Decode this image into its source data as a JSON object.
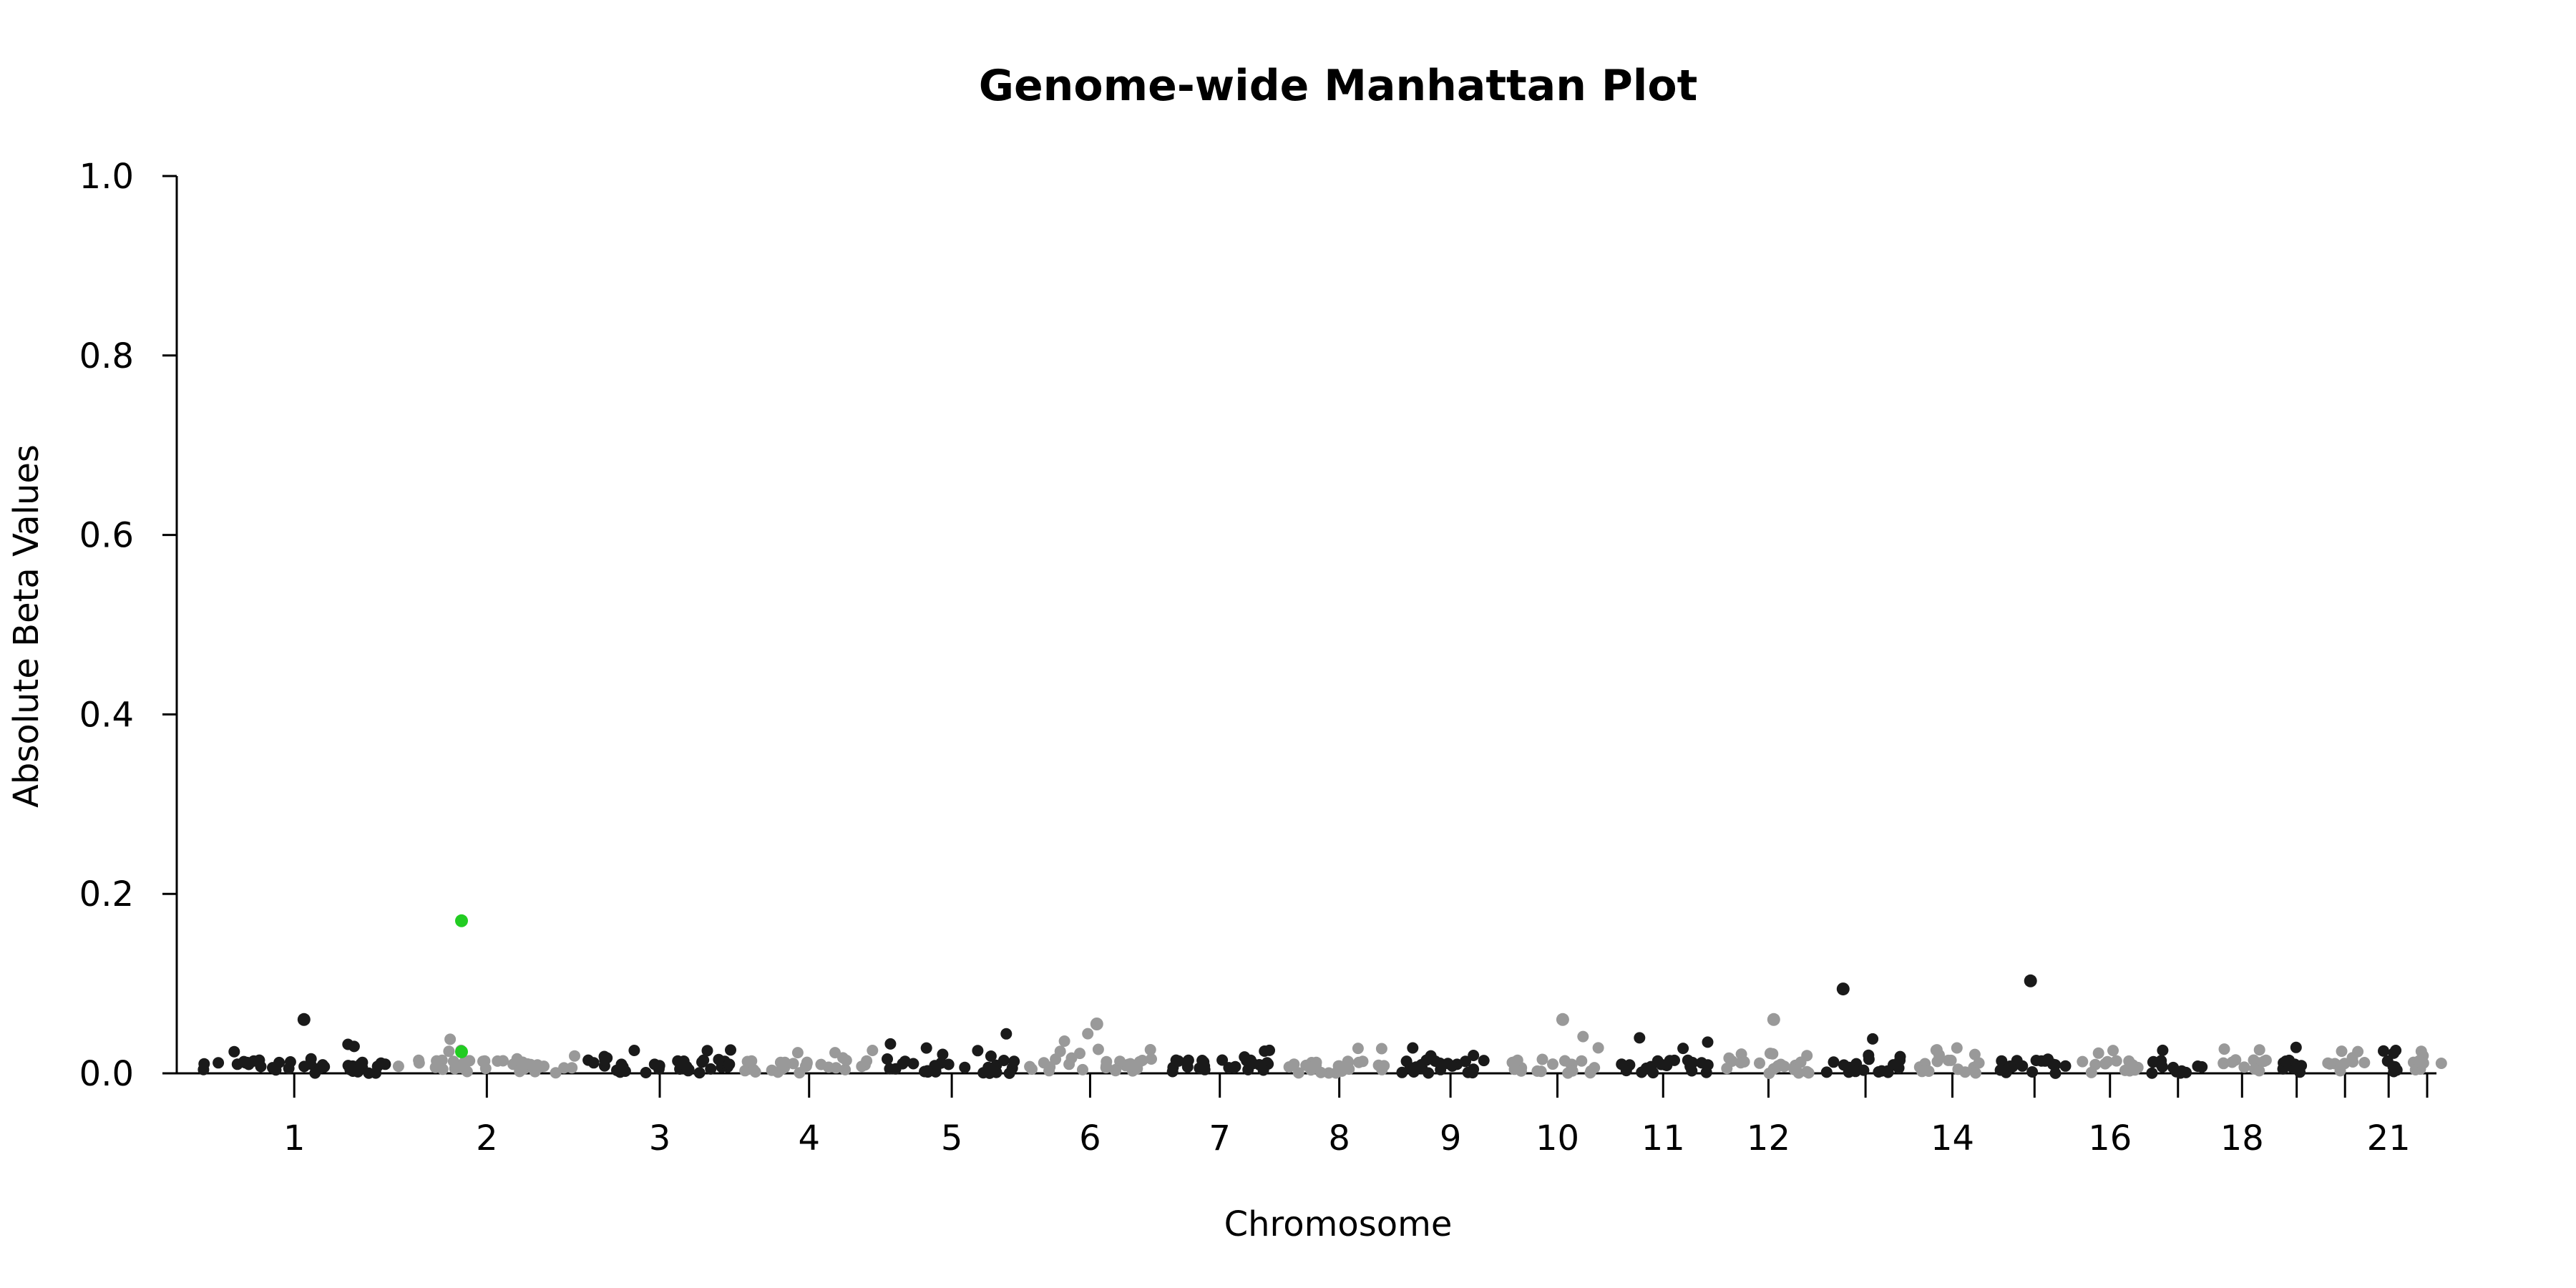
{
  "chart_data": {
    "type": "scatter",
    "title": "Genome-wide Manhattan Plot",
    "xlabel": "Chromosome",
    "ylabel": "Absolute Beta Values",
    "ylim": [
      0,
      1.0
    ],
    "y_ticks": [
      "0.0",
      "0.2",
      "0.4",
      "0.6",
      "0.8",
      "1.0"
    ],
    "y_tick_values": [
      0.0,
      0.2,
      0.4,
      0.6,
      0.8,
      1.0
    ],
    "grid": false,
    "chromosome_tick_labels": [
      "1",
      "2",
      "3",
      "4",
      "5",
      "6",
      "7",
      "8",
      "9",
      "10",
      "11",
      "12",
      "14",
      "16",
      "18",
      "21"
    ],
    "chromosomes": [
      {
        "chr": "1",
        "labeled": true
      },
      {
        "chr": "2",
        "labeled": true
      },
      {
        "chr": "3",
        "labeled": true
      },
      {
        "chr": "4",
        "labeled": true
      },
      {
        "chr": "5",
        "labeled": true
      },
      {
        "chr": "6",
        "labeled": true
      },
      {
        "chr": "7",
        "labeled": true
      },
      {
        "chr": "8",
        "labeled": true
      },
      {
        "chr": "9",
        "labeled": true
      },
      {
        "chr": "10",
        "labeled": true
      },
      {
        "chr": "11",
        "labeled": true
      },
      {
        "chr": "12",
        "labeled": true
      },
      {
        "chr": "13",
        "labeled": false
      },
      {
        "chr": "14",
        "labeled": true
      },
      {
        "chr": "15",
        "labeled": false
      },
      {
        "chr": "16",
        "labeled": true
      },
      {
        "chr": "17",
        "labeled": false
      },
      {
        "chr": "18",
        "labeled": true
      },
      {
        "chr": "19",
        "labeled": false
      },
      {
        "chr": "20",
        "labeled": false
      },
      {
        "chr": "21",
        "labeled": true
      },
      {
        "chr": "22",
        "labeled": false
      }
    ],
    "colors": {
      "odd": "#1a1a1a",
      "even": "#999999",
      "highlight": "#22cc22"
    },
    "notable_points": [
      {
        "chr": "2",
        "value": 0.17,
        "highlight": true
      },
      {
        "chr": "2",
        "value": 0.024,
        "highlight": true
      },
      {
        "chr": "1",
        "value": 0.06
      },
      {
        "chr": "13",
        "value": 0.094
      },
      {
        "chr": "15",
        "value": 0.103
      },
      {
        "chr": "10",
        "value": 0.06
      },
      {
        "chr": "12",
        "value": 0.06
      },
      {
        "chr": "6",
        "value": 0.055
      }
    ]
  }
}
